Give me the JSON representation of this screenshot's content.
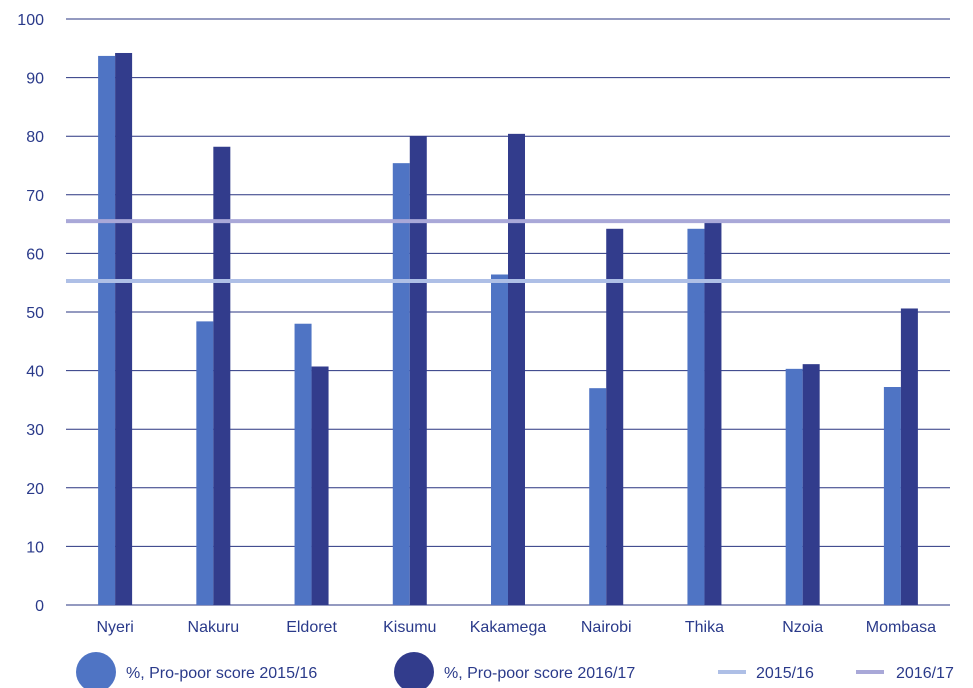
{
  "chart_data": {
    "type": "bar",
    "title": "",
    "xlabel": "",
    "ylabel": "",
    "ylim": [
      0,
      100
    ],
    "yticks": [
      "0",
      "10",
      "20",
      "30",
      "40",
      "50",
      "60",
      "70",
      "80",
      "90",
      "100"
    ],
    "grid": true,
    "legend_position": "bottom",
    "categories": [
      "Nyeri",
      "Nakuru",
      "Eldoret",
      "Kisumu",
      "Kakamega",
      "Nairobi",
      "Thika",
      "Nzoia",
      "Mombasa"
    ],
    "series": [
      {
        "name": "%, Pro-poor score 2015/16",
        "color": "#4f74c4",
        "values": [
          93.7,
          48.4,
          48.0,
          75.4,
          56.4,
          37.0,
          64.2,
          40.3,
          37.2
        ]
      },
      {
        "name": "%, Pro-poor score 2016/17",
        "color": "#323c8c",
        "values": [
          94.2,
          78.2,
          40.7,
          80.0,
          80.4,
          64.2,
          65.2,
          41.1,
          50.6
        ]
      }
    ],
    "reference_lines": [
      {
        "name": "2015/16",
        "value": 55.3,
        "color": "#aebfe6"
      },
      {
        "name": "2016/17",
        "value": 65.5,
        "color": "#a9a8d8"
      }
    ],
    "colors": {
      "axis_text": "#2a3a8a",
      "grid": "#2a3580"
    }
  }
}
